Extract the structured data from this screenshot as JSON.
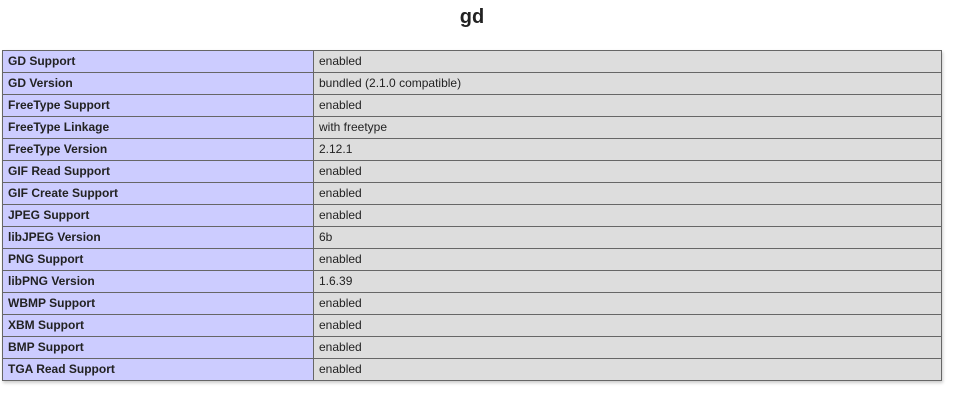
{
  "section": {
    "title": "gd"
  },
  "table": {
    "rows": [
      {
        "label": "GD Support",
        "value": "enabled"
      },
      {
        "label": "GD Version",
        "value": "bundled (2.1.0 compatible)"
      },
      {
        "label": "FreeType Support",
        "value": "enabled"
      },
      {
        "label": "FreeType Linkage",
        "value": "with freetype"
      },
      {
        "label": "FreeType Version",
        "value": "2.12.1"
      },
      {
        "label": "GIF Read Support",
        "value": "enabled"
      },
      {
        "label": "GIF Create Support",
        "value": "enabled"
      },
      {
        "label": "JPEG Support",
        "value": "enabled"
      },
      {
        "label": "libJPEG Version",
        "value": "6b"
      },
      {
        "label": "PNG Support",
        "value": "enabled"
      },
      {
        "label": "libPNG Version",
        "value": "1.6.39"
      },
      {
        "label": "WBMP Support",
        "value": "enabled"
      },
      {
        "label": "XBM Support",
        "value": "enabled"
      },
      {
        "label": "BMP Support",
        "value": "enabled"
      },
      {
        "label": "TGA Read Support",
        "value": "enabled"
      }
    ]
  },
  "colors": {
    "label_cell_bg": "#ccccff",
    "value_cell_bg": "#dddddd",
    "cell_border": "#666666",
    "text": "#222222",
    "page_bg": "#ffffff"
  }
}
